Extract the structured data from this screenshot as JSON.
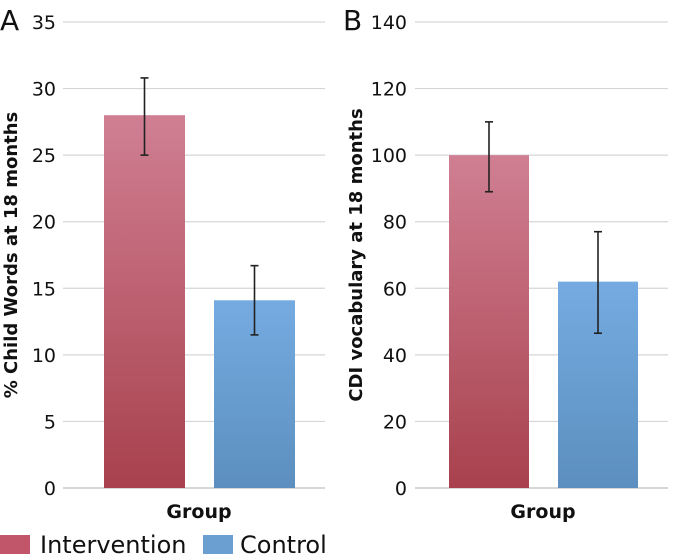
{
  "chart_data": [
    {
      "panel_label": "A",
      "type": "bar",
      "categories": [
        "Intervention",
        "Control"
      ],
      "values": [
        28,
        14.1
      ],
      "error": [
        [
          25,
          30.8
        ],
        [
          11.5,
          16.7
        ]
      ],
      "ylabel": "% Child Words at 18 months",
      "xlabel": "Group",
      "ylim": [
        0,
        35
      ],
      "yticks": [
        "0",
        "5",
        "10",
        "15",
        "20",
        "25",
        "30",
        "35"
      ],
      "grid": true
    },
    {
      "panel_label": "B",
      "type": "bar",
      "categories": [
        "Intervention",
        "Control"
      ],
      "values": [
        100,
        62
      ],
      "error": [
        [
          89,
          110
        ],
        [
          46.5,
          77
        ]
      ],
      "ylabel": "CDI vocabulary at 18 months",
      "xlabel": "Group",
      "ylim": [
        0,
        140
      ],
      "yticks": [
        "0",
        "20",
        "40",
        "60",
        "80",
        "100",
        "120",
        "140"
      ],
      "grid": true
    }
  ],
  "legend": {
    "items": [
      {
        "label": "Intervention",
        "color": "#c1566a"
      },
      {
        "label": "Control",
        "color": "#6b9fd2"
      }
    ]
  },
  "colors": {
    "intervention_top": "#d07f93",
    "intervention_bottom": "#a8414d",
    "control_top": "#75abe1",
    "control_bottom": "#5c8fbf",
    "grid": "#d6d6d6",
    "axis": "#bfbfbf",
    "error_bar": "#222222"
  }
}
